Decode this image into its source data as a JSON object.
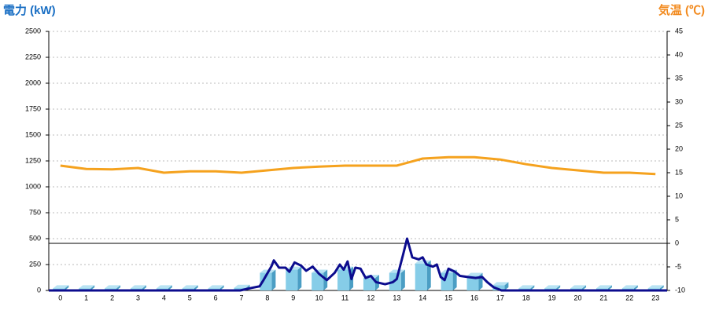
{
  "chart_data": {
    "type": "bar",
    "y_title": "電力 (kW)",
    "y2_title": "気温 (℃)",
    "categories": [
      "0",
      "1",
      "2",
      "3",
      "4",
      "5",
      "6",
      "7",
      "8",
      "9",
      "10",
      "11",
      "12",
      "13",
      "14",
      "15",
      "16",
      "17",
      "18",
      "19",
      "20",
      "21",
      "22",
      "23"
    ],
    "xlim": [
      -0.45,
      23.45
    ],
    "ylim": [
      0,
      2500
    ],
    "yticks": [
      0,
      250,
      500,
      750,
      1000,
      1250,
      1500,
      1750,
      2000,
      2250,
      2500
    ],
    "y2lim": [
      -10,
      45
    ],
    "y2ticks": [
      -10,
      -5,
      0,
      5,
      10,
      15,
      20,
      25,
      30,
      35,
      40,
      45
    ],
    "grid": true,
    "series": [
      {
        "type": "bar",
        "color": "#86cde8",
        "values": [
          20,
          20,
          20,
          20,
          20,
          20,
          20,
          25,
          170,
          200,
          170,
          200,
          120,
          170,
          260,
          170,
          140,
          50,
          20,
          20,
          20,
          20,
          20,
          20
        ]
      },
      {
        "type": "line",
        "color": "#0c0c8e",
        "x": [
          -0.45,
          6.95,
          7.4,
          7.7,
          7.85,
          8.15,
          8.25,
          8.45,
          8.7,
          8.85,
          9.05,
          9.3,
          9.5,
          9.75,
          10,
          10.3,
          10.6,
          10.8,
          10.95,
          11.1,
          11.25,
          11.4,
          11.6,
          11.8,
          12,
          12.2,
          12.55,
          12.85,
          13,
          13.25,
          13.4,
          13.6,
          13.85,
          14,
          14.15,
          14.4,
          14.55,
          14.7,
          14.85,
          15,
          15.25,
          15.45,
          15.75,
          16.05,
          16.3,
          16.5,
          16.75,
          17.05,
          23.45
        ],
        "values": [
          0,
          0,
          25,
          40,
          100,
          230,
          290,
          220,
          220,
          180,
          270,
          240,
          190,
          230,
          160,
          100,
          170,
          250,
          200,
          280,
          110,
          220,
          210,
          120,
          140,
          80,
          60,
          80,
          110,
          350,
          500,
          320,
          300,
          320,
          250,
          230,
          250,
          130,
          100,
          210,
          180,
          140,
          130,
          120,
          130,
          80,
          30,
          0,
          0
        ]
      },
      {
        "type": "line",
        "axis": "y2",
        "color": "#f5a21e",
        "values": [
          16.5,
          15.8,
          15.7,
          16,
          15,
          15.3,
          15.3,
          15,
          15.5,
          16,
          16.3,
          16.5,
          16.5,
          16.5,
          18,
          18.3,
          18.3,
          17.8,
          16.8,
          16,
          15.5,
          15,
          15,
          14.7
        ]
      }
    ]
  }
}
